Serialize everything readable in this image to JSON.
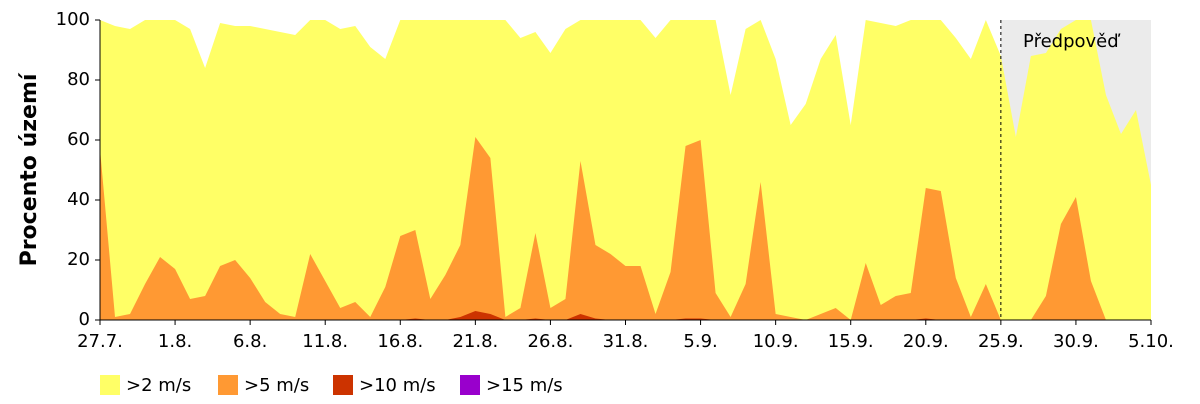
{
  "chart_data": {
    "type": "area",
    "y_label": "Procento území",
    "categories": [
      "27.7.",
      null,
      null,
      null,
      null,
      "1.8.",
      null,
      null,
      null,
      null,
      "6.8.",
      null,
      null,
      null,
      null,
      "11.8.",
      null,
      null,
      null,
      null,
      "16.8.",
      null,
      null,
      null,
      null,
      "21.8.",
      null,
      null,
      null,
      null,
      "26.8.",
      null,
      null,
      null,
      null,
      "31.8.",
      null,
      null,
      null,
      null,
      "5.9.",
      null,
      null,
      null,
      null,
      "10.9.",
      null,
      null,
      null,
      null,
      "15.9.",
      null,
      null,
      null,
      null,
      "20.9.",
      null,
      null,
      null,
      null,
      "25.9.",
      null,
      null,
      null,
      null,
      "30.9.",
      null,
      null,
      null,
      null,
      "5.10."
    ],
    "series": [
      {
        "name": ">2 m/s",
        "color": "#ffff66",
        "values": [
          100,
          98,
          97,
          100,
          100,
          100,
          97,
          84,
          99,
          98,
          98,
          97,
          96,
          95,
          100,
          100,
          97,
          98,
          91,
          87,
          100,
          100,
          100,
          100,
          100,
          100,
          100,
          100,
          94,
          96,
          89,
          97,
          100,
          100,
          100,
          100,
          100,
          94,
          100,
          100,
          100,
          100,
          75,
          97,
          100,
          87,
          65,
          72,
          87,
          95,
          65,
          100,
          99,
          98,
          100,
          100,
          100,
          94,
          87,
          100,
          88,
          61,
          88,
          89,
          97,
          100,
          100,
          75,
          62,
          70,
          45
        ]
      },
      {
        "name": ">5 m/s",
        "color": "#ff9933",
        "values": [
          57,
          1,
          2,
          12,
          21,
          17,
          7,
          8,
          18,
          20,
          14,
          6,
          2,
          1,
          22,
          13,
          4,
          6,
          1,
          11,
          28,
          30,
          7,
          15,
          25,
          61,
          54,
          1,
          4,
          29,
          4,
          7,
          53,
          25,
          22,
          18,
          18,
          2,
          16,
          58,
          60,
          9,
          1,
          12,
          46,
          2,
          1,
          0,
          2,
          4,
          0,
          19,
          5,
          8,
          9,
          44,
          43,
          14,
          1,
          12,
          0,
          0,
          0,
          8,
          32,
          41,
          13,
          0,
          0,
          0,
          0
        ]
      },
      {
        "name": ">10 m/s",
        "color": "#cc3300",
        "values": [
          0,
          0,
          0,
          0,
          0,
          0,
          0,
          0,
          0,
          0,
          0,
          0,
          0,
          0,
          0,
          0,
          0,
          0,
          0,
          0,
          0,
          0.5,
          0,
          0,
          1,
          3,
          2,
          0,
          0,
          0.5,
          0,
          0,
          2,
          0.5,
          0,
          0,
          0,
          0,
          0,
          0.5,
          0.5,
          0,
          0,
          0,
          0,
          0,
          0,
          0,
          0,
          0,
          0,
          0,
          0,
          0,
          0,
          0.5,
          0,
          0,
          0,
          0,
          0,
          0,
          0,
          0,
          0,
          0,
          0,
          0,
          0,
          0,
          0
        ]
      },
      {
        "name": ">15 m/s",
        "color": "#9900cc",
        "values": [
          0,
          0,
          0,
          0,
          0,
          0,
          0,
          0,
          0,
          0,
          0,
          0,
          0,
          0,
          0,
          0,
          0,
          0,
          0,
          0,
          0,
          0,
          0,
          0,
          0,
          0,
          0,
          0,
          0,
          0,
          0,
          0,
          0,
          0,
          0,
          0,
          0,
          0,
          0,
          0,
          0,
          0,
          0,
          0,
          0,
          0,
          0,
          0,
          0,
          0,
          0,
          0,
          0,
          0,
          0,
          0,
          0,
          0,
          0,
          0,
          0,
          0,
          0,
          0,
          0,
          0,
          0,
          0,
          0,
          0,
          0
        ]
      }
    ],
    "ylim": [
      0,
      100
    ],
    "yticks": [
      0,
      20,
      40,
      60,
      80,
      100
    ],
    "forecast": {
      "label": "Předpověď",
      "start": 60,
      "color": "#ebebeb"
    },
    "legend": "bottom"
  }
}
